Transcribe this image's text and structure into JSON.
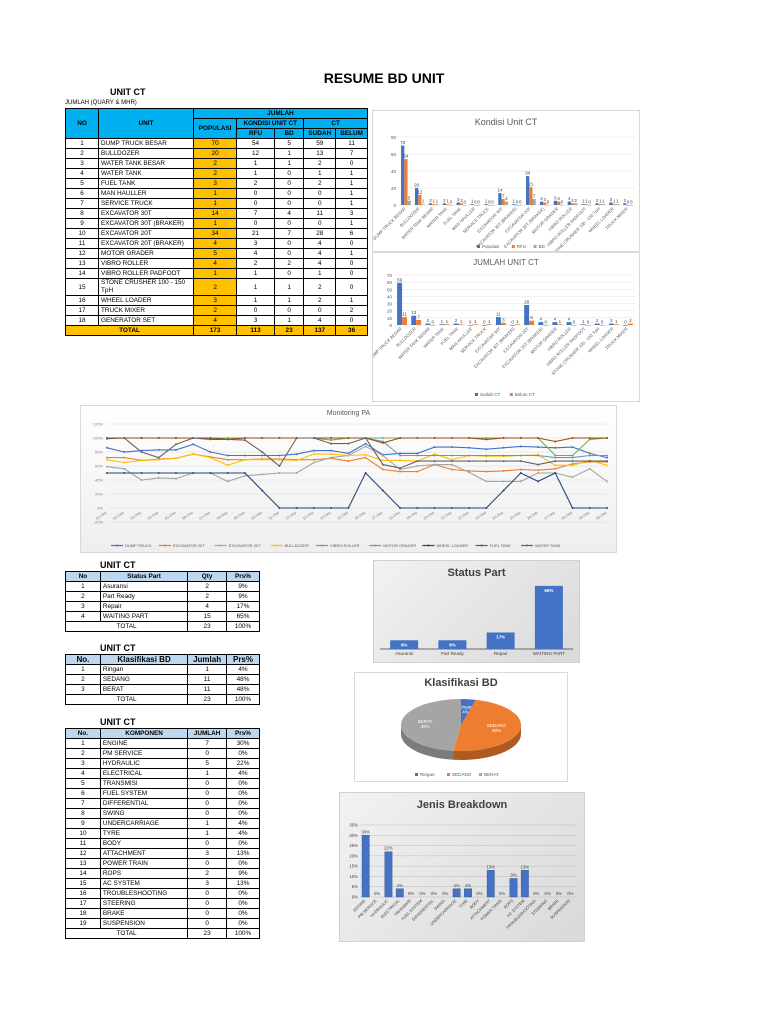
{
  "title": "RESUME BD UNIT",
  "unit_ct_table": {
    "section": "UNIT CT",
    "subtitle": "JUMLAH (QUARY & MHR)",
    "headers": {
      "no": "NO",
      "unit": "UNIT",
      "jumlah": "JUMLAH",
      "populasi": "POPULASI",
      "kondisi": "KONDISI UNIT CT",
      "ct": "CT",
      "rfu": "RFU",
      "bd": "BD",
      "sudah": "SUDAH",
      "belum": "BELUM"
    },
    "rows": [
      {
        "no": "1",
        "unit": "DUMP TRUCK BESAR",
        "pop": "70",
        "rfu": "54",
        "bd": "5",
        "sudah": "59",
        "belum": "11"
      },
      {
        "no": "2",
        "unit": "BULLDOZER",
        "pop": "20",
        "rfu": "12",
        "bd": "1",
        "sudah": "13",
        "belum": "7"
      },
      {
        "no": "3",
        "unit": "WATER TANK BESAR",
        "pop": "2",
        "rfu": "1",
        "bd": "1",
        "sudah": "2",
        "belum": "0"
      },
      {
        "no": "4",
        "unit": "WATER TANK",
        "pop": "2",
        "rfu": "1",
        "bd": "0",
        "sudah": "1",
        "belum": "1"
      },
      {
        "no": "5",
        "unit": "FUEL TANK",
        "pop": "3",
        "rfu": "2",
        "bd": "0",
        "sudah": "2",
        "belum": "1"
      },
      {
        "no": "6",
        "unit": "MAN HAULLER",
        "pop": "1",
        "rfu": "0",
        "bd": "0",
        "sudah": "0",
        "belum": "1"
      },
      {
        "no": "7",
        "unit": "SERVICE TRUCK",
        "pop": "1",
        "rfu": "0",
        "bd": "0",
        "sudah": "0",
        "belum": "1"
      },
      {
        "no": "8",
        "unit": "EXCAVATOR 30T",
        "pop": "14",
        "rfu": "7",
        "bd": "4",
        "sudah": "11",
        "belum": "3"
      },
      {
        "no": "9",
        "unit": "EXCAVATOR 30T (BRAKER)",
        "pop": "1",
        "rfu": "0",
        "bd": "0",
        "sudah": "0",
        "belum": "1"
      },
      {
        "no": "10",
        "unit": "EXCAVATOR 20T",
        "pop": "34",
        "rfu": "21",
        "bd": "7",
        "sudah": "28",
        "belum": "6"
      },
      {
        "no": "11",
        "unit": "EXCAVATOR 20T (BRAKER)",
        "pop": "4",
        "rfu": "3",
        "bd": "0",
        "sudah": "4",
        "belum": "0"
      },
      {
        "no": "12",
        "unit": "MOTOR GRADER",
        "pop": "5",
        "rfu": "4",
        "bd": "0",
        "sudah": "4",
        "belum": "1"
      },
      {
        "no": "13",
        "unit": "VIBRO ROLLER",
        "pop": "4",
        "rfu": "2",
        "bd": "2",
        "sudah": "4",
        "belum": "0"
      },
      {
        "no": "14",
        "unit": "VIBRO ROLLER PADFOOT",
        "pop": "1",
        "rfu": "1",
        "bd": "0",
        "sudah": "1",
        "belum": "0"
      },
      {
        "no": "15",
        "unit": "STONE CRUSHER 100 - 150 TpH",
        "pop": "2",
        "rfu": "1",
        "bd": "1",
        "sudah": "2",
        "belum": "0"
      },
      {
        "no": "16",
        "unit": "WHEEL LOADER",
        "pop": "3",
        "rfu": "1",
        "bd": "1",
        "sudah": "2",
        "belum": "1"
      },
      {
        "no": "17",
        "unit": "TRUCK MIXER",
        "pop": "2",
        "rfu": "0",
        "bd": "0",
        "sudah": "0",
        "belum": "2"
      },
      {
        "no": "18",
        "unit": "GENERATOR SET",
        "pop": "4",
        "rfu": "3",
        "bd": "1",
        "sudah": "4",
        "belum": "0"
      }
    ],
    "total": {
      "label": "TOTAL",
      "pop": "173",
      "rfu": "113",
      "bd": "23",
      "sudah": "137",
      "belum": "36"
    }
  },
  "status_part_table": {
    "section": "UNIT CT",
    "headers": [
      "No",
      "Status Part",
      "Qty",
      "Prs%"
    ],
    "rows": [
      {
        "no": "1",
        "name": "Asuransi",
        "qty": "2",
        "pct": "9%"
      },
      {
        "no": "2",
        "name": "Part Ready",
        "qty": "2",
        "pct": "9%"
      },
      {
        "no": "3",
        "name": "Repair",
        "qty": "4",
        "pct": "17%"
      },
      {
        "no": "4",
        "name": "WAITING PART",
        "qty": "15",
        "pct": "65%"
      }
    ],
    "total": {
      "label": "TOTAL",
      "qty": "23",
      "pct": "100%"
    }
  },
  "klasifikasi_table": {
    "section": "UNIT CT",
    "headers": [
      "No.",
      "Klasifikasi BD",
      "Jumlah",
      "Prs%"
    ],
    "rows": [
      {
        "no": "1",
        "name": "Ringan",
        "qty": "1",
        "pct": "4%"
      },
      {
        "no": "2",
        "name": "SEDANG",
        "qty": "11",
        "pct": "48%"
      },
      {
        "no": "3",
        "name": "BERAT",
        "qty": "11",
        "pct": "48%"
      }
    ],
    "total": {
      "label": "TOTAL",
      "qty": "23",
      "pct": "100%"
    }
  },
  "komponen_table": {
    "section": "UNIT CT",
    "headers": [
      "No.",
      "KOMPONEN",
      "JUMLAH",
      "Prs%"
    ],
    "rows": [
      {
        "no": "1",
        "name": "ENGINE",
        "qty": "7",
        "pct": "30%"
      },
      {
        "no": "2",
        "name": "PM SERVICE",
        "qty": "0",
        "pct": "0%"
      },
      {
        "no": "3",
        "name": "HYDRAULIC",
        "qty": "5",
        "pct": "22%"
      },
      {
        "no": "4",
        "name": "ELECTRICAL",
        "qty": "1",
        "pct": "4%"
      },
      {
        "no": "5",
        "name": "TRANSMISI",
        "qty": "0",
        "pct": "0%"
      },
      {
        "no": "6",
        "name": "FUEL SYSTEM",
        "qty": "0",
        "pct": "0%"
      },
      {
        "no": "7",
        "name": "DIFFERENTIAL",
        "qty": "0",
        "pct": "0%"
      },
      {
        "no": "8",
        "name": "SWING",
        "qty": "0",
        "pct": "0%"
      },
      {
        "no": "9",
        "name": "UNDERCARRIAGE",
        "qty": "1",
        "pct": "4%"
      },
      {
        "no": "10",
        "name": "TYRE",
        "qty": "1",
        "pct": "4%"
      },
      {
        "no": "11",
        "name": "BODY",
        "qty": "0",
        "pct": "0%"
      },
      {
        "no": "12",
        "name": "ATTACHMENT",
        "qty": "3",
        "pct": "13%"
      },
      {
        "no": "13",
        "name": "POWER TRAIN",
        "qty": "0",
        "pct": "0%"
      },
      {
        "no": "14",
        "name": "ROPS",
        "qty": "2",
        "pct": "9%"
      },
      {
        "no": "15",
        "name": "AC SYSTEM",
        "qty": "3",
        "pct": "13%"
      },
      {
        "no": "16",
        "name": "TROUBLESHOOTING",
        "qty": "0",
        "pct": "0%"
      },
      {
        "no": "17",
        "name": "STEERING",
        "qty": "0",
        "pct": "0%"
      },
      {
        "no": "18",
        "name": "BRAKE",
        "qty": "0",
        "pct": "0%"
      },
      {
        "no": "19",
        "name": "SUSPENSION",
        "qty": "0",
        "pct": "0%"
      }
    ],
    "total": {
      "label": "TOTAL",
      "qty": "23",
      "pct": "100%"
    }
  },
  "colors": {
    "blue": "#4472c4",
    "orange": "#ed7d31",
    "gray": "#a5a5a5",
    "yellow": "#ffc000",
    "lightblue": "#5b9bd5",
    "green": "#70ad47",
    "navy": "#264478",
    "brown": "#9e480e",
    "darkgray": "#636363",
    "header_cyan": "#00b0f0",
    "header_lightblue": "#bdd7ee"
  },
  "chart_data": [
    {
      "type": "bar",
      "title": "Kondisi Unit CT",
      "categories": [
        "DUMP TRUCK BESAR",
        "BULLDOZER",
        "WATER TANK BESAR",
        "WATER TANK",
        "FUEL TANK",
        "MAN HAULLER",
        "SERVICE TRUCK",
        "EXCAVATOR 30T",
        "EXCAVATOR 30T (BRAKER)",
        "EXCAVATOR 20T",
        "EXCAVATOR 20T (BRAKER)",
        "MOTOR GRADER",
        "VIBRO ROLLER",
        "VIBRO ROLLER PADFOOT",
        "STONE CRUSHER 100 - 150 TpH",
        "WHEEL LOADER",
        "TRUCK MIXER"
      ],
      "series": [
        {
          "name": "Populasi",
          "values": [
            70,
            20,
            2,
            2,
            3,
            1,
            1,
            14,
            1,
            34,
            4,
            5,
            4,
            1,
            2,
            3,
            2
          ]
        },
        {
          "name": "RFU",
          "values": [
            54,
            12,
            1,
            1,
            2,
            0,
            0,
            7,
            0,
            21,
            3,
            4,
            2,
            1,
            1,
            1,
            0
          ]
        },
        {
          "name": "BD",
          "values": [
            5,
            1,
            1,
            0,
            0,
            0,
            0,
            4,
            0,
            7,
            0,
            0,
            2,
            0,
            1,
            1,
            0
          ]
        }
      ],
      "ylim": [
        0,
        80
      ],
      "yticks": [
        0,
        20,
        40,
        60,
        80
      ],
      "legend_position": "bottom"
    },
    {
      "type": "bar",
      "title": "JUMLAH UNIT CT",
      "categories": [
        "DUMP TRUCK BESAR",
        "BULLDOZER",
        "WATER TANK BESAR",
        "WATER TANK",
        "FUEL TANK",
        "MAN HAULLER",
        "SERVICE TRUCK",
        "EXCAVATOR 30T",
        "EXCAVATOR 30T (BRAKER)",
        "EXCAVATOR 20T",
        "EXCAVATOR 20T (BRAKER)",
        "MOTOR GRADER",
        "VIBRO ROLLER",
        "VIBRO ROLLER PADFOOT",
        "STONE CRUSHER 100 - 150 TpH",
        "WHEEL LOADER",
        "TRUCK MIXER"
      ],
      "series": [
        {
          "name": "Sudah CT",
          "values": [
            59,
            13,
            2,
            1,
            2,
            0,
            0,
            11,
            0,
            28,
            4,
            4,
            4,
            1,
            2,
            2,
            0
          ]
        },
        {
          "name": "Belum CT",
          "values": [
            11,
            7,
            0,
            1,
            1,
            1,
            1,
            3,
            1,
            6,
            0,
            1,
            0,
            0,
            0,
            1,
            2
          ]
        }
      ],
      "ylim": [
        0,
        70
      ],
      "yticks": [
        0,
        10,
        20,
        30,
        40,
        50,
        60,
        70
      ],
      "legend_position": "bottom"
    },
    {
      "type": "line",
      "title": "Monitoring PA",
      "x": [
        "01-Sep",
        "02-Sep",
        "03-Sep",
        "04-Sep",
        "05-Sep",
        "06-Sep",
        "07-Sep",
        "08-Sep",
        "09-Sep",
        "10-Sep",
        "11-Sep",
        "12-Sep",
        "13-Sep",
        "14-Sep",
        "15-Sep",
        "16-Sep",
        "17-Sep",
        "18-Sep",
        "19-Sep",
        "20-Sep",
        "21-Sep",
        "22-Sep",
        "23-Sep",
        "24-Sep",
        "25-Sep",
        "26-Sep",
        "27-Sep",
        "28-Sep",
        "29-Sep",
        "30-Sep"
      ],
      "series": [
        {
          "name": "DUMP TRUCK",
          "values": [
            86,
            80,
            82,
            83,
            83,
            91,
            80,
            75,
            75,
            75,
            75,
            77,
            82,
            82,
            78,
            92,
            76,
            78,
            78,
            87,
            87,
            86,
            84,
            86,
            88,
            87,
            86,
            87,
            78,
            72
          ]
        },
        {
          "name": "EXCAVATOR 20T",
          "values": [
            72,
            72,
            68,
            70,
            71,
            77,
            73,
            69,
            69,
            70,
            70,
            69,
            69,
            71,
            67,
            72,
            55,
            52,
            52,
            62,
            55,
            53,
            52,
            53,
            55,
            54,
            56,
            63,
            66,
            66
          ]
        },
        {
          "name": "EXCAVATOR 30T",
          "values": [
            59,
            56,
            40,
            43,
            42,
            50,
            50,
            38,
            46,
            48,
            50,
            50,
            65,
            72,
            75,
            88,
            75,
            55,
            60,
            62,
            62,
            51,
            38,
            38,
            38,
            50,
            50,
            44,
            56,
            38
          ]
        },
        {
          "name": "BULLDOZER",
          "values": [
            69,
            65,
            68,
            69,
            71,
            77,
            72,
            61,
            69,
            69,
            69,
            68,
            77,
            77,
            75,
            76,
            68,
            68,
            67,
            77,
            69,
            75,
            74,
            74,
            75,
            76,
            61,
            61,
            68,
            61
          ]
        },
        {
          "name": "VIBRO ROLLER",
          "values": [
            100,
            100,
            100,
            100,
            100,
            100,
            100,
            100,
            100,
            100,
            100,
            100,
            100,
            100,
            100,
            100,
            95,
            75,
            75,
            75,
            75,
            75,
            75,
            75,
            75,
            75,
            72,
            72,
            75,
            75
          ]
        },
        {
          "name": "MOTOR GRADER",
          "values": [
            100,
            100,
            100,
            100,
            100,
            100,
            100,
            100,
            100,
            100,
            100,
            100,
            100,
            97,
            100,
            100,
            100,
            100,
            100,
            100,
            100,
            100,
            100,
            100,
            100,
            100,
            75,
            75,
            98,
            100
          ]
        },
        {
          "name": "WHEEL LOADER",
          "values": [
            50,
            50,
            50,
            50,
            50,
            50,
            50,
            50,
            50,
            25,
            0,
            0,
            0,
            0,
            0,
            50,
            25,
            0,
            0,
            0,
            0,
            0,
            0,
            25,
            50,
            38,
            50,
            0,
            0,
            0
          ]
        },
        {
          "name": "FUEL TANK",
          "values": [
            99,
            100,
            100,
            100,
            100,
            100,
            100,
            98,
            100,
            100,
            100,
            100,
            100,
            100,
            100,
            100,
            93,
            100,
            100,
            100,
            100,
            100,
            98,
            100,
            100,
            100,
            95,
            100,
            100,
            100
          ]
        },
        {
          "name": "WATER TANK",
          "values": [
            100,
            100,
            80,
            72,
            91,
            100,
            98,
            98,
            97,
            80,
            60,
            100,
            100,
            92,
            92,
            100,
            62,
            57,
            67,
            67,
            67,
            67,
            67,
            67,
            67,
            62,
            67,
            67,
            67,
            67
          ]
        }
      ],
      "ylim": [
        -20,
        120
      ],
      "yticks": [
        "-20%",
        "0%",
        "20%",
        "40%",
        "60%",
        "80%",
        "100%",
        "120%"
      ],
      "legend_position": "bottom"
    },
    {
      "type": "bar",
      "title": "Status Part",
      "categories": [
        "Asuransi",
        "Part Ready",
        "Repair",
        "WAITING PART"
      ],
      "values": [
        9,
        9,
        17,
        65
      ],
      "data_labels": [
        "9%",
        "9%",
        "17%",
        "65%"
      ]
    },
    {
      "type": "pie",
      "title": "Klasifikasi BD",
      "categories": [
        "Ringan",
        "SEDANG",
        "BERAT"
      ],
      "values": [
        4,
        48,
        48
      ],
      "data_labels": [
        "Ringan 4%",
        "SEDANG 48%",
        "BERAT 48%"
      ],
      "legend_position": "bottom"
    },
    {
      "type": "bar",
      "title": "Jenis Breakdown",
      "categories": [
        "ENGINE",
        "PM SERVICE",
        "HYDRAULIC",
        "ELECTRICAL",
        "TRANSMISI",
        "FUEL SYSTEM",
        "DIFFERENTIAL",
        "SWING",
        "UNDERCARRIAGE",
        "TYRE",
        "BODY",
        "ATTACHMENT",
        "POWER TRAIN",
        "ROPS",
        "AC SYSTEM",
        "TROUBLESHOOTING",
        "STEERING",
        "BRAKE",
        "SUSPENSION"
      ],
      "values": [
        30,
        0,
        22,
        4,
        0,
        0,
        0,
        0,
        4,
        4,
        0,
        13,
        0,
        9,
        13,
        0,
        0,
        0,
        0
      ],
      "ylim": [
        0,
        35
      ],
      "yticks": [
        "0%",
        "5%",
        "10%",
        "15%",
        "20%",
        "25%",
        "30%",
        "35%"
      ]
    }
  ]
}
